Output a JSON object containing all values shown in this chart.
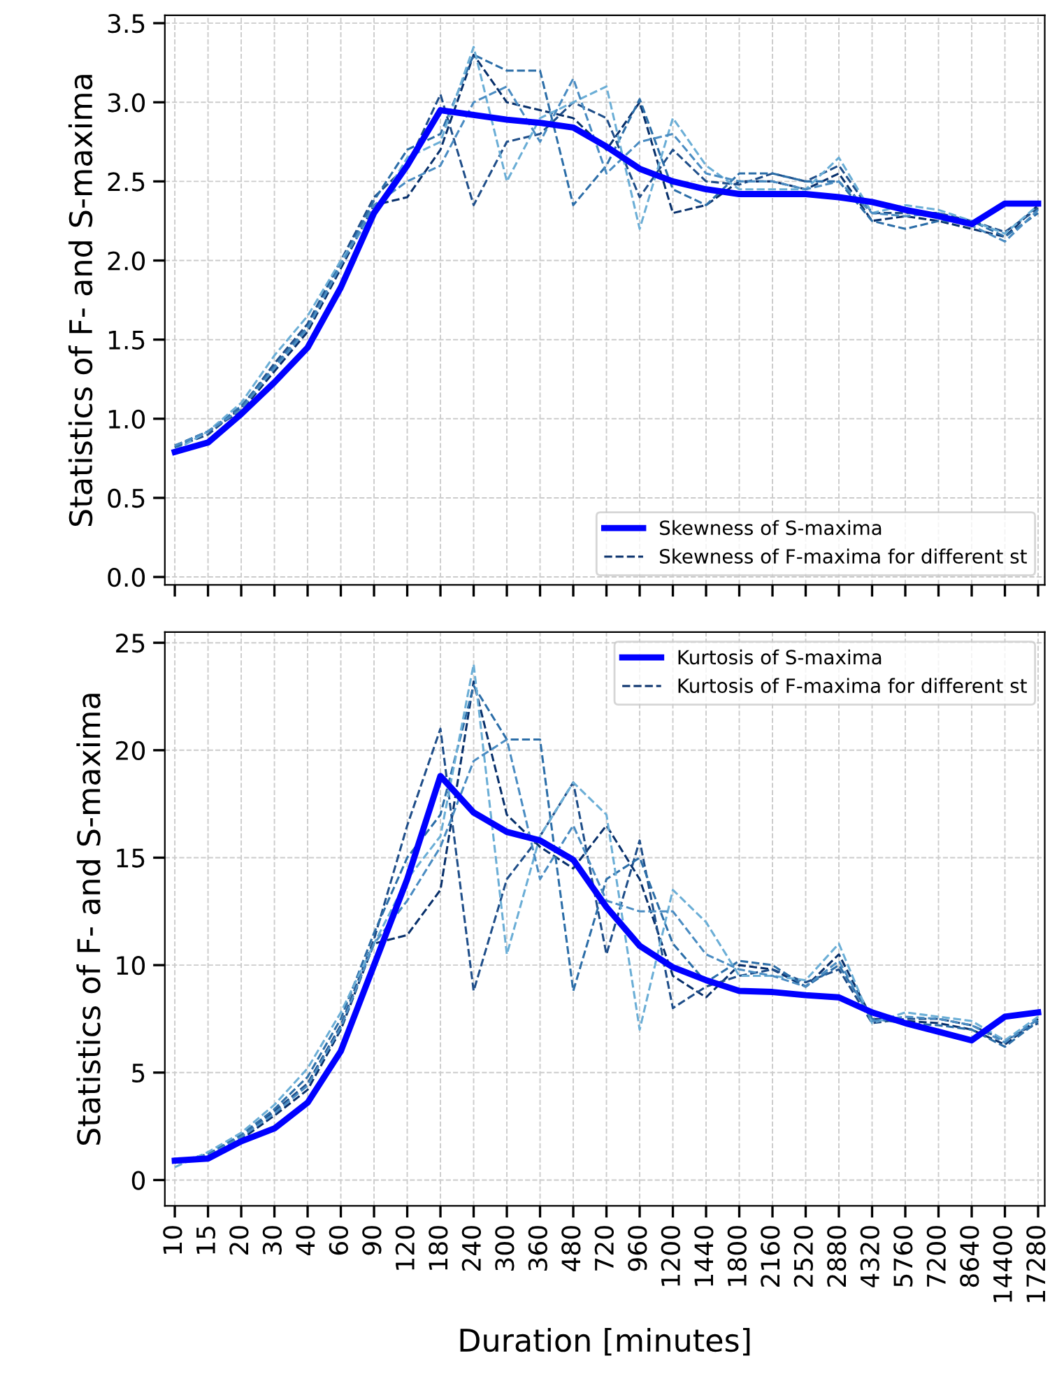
{
  "chart_data": [
    {
      "type": "line",
      "ylabel": "Statistics of F- and S-maxima",
      "categories": [
        "10",
        "15",
        "20",
        "30",
        "40",
        "60",
        "90",
        "120",
        "180",
        "240",
        "300",
        "360",
        "480",
        "720",
        "960",
        "1200",
        "1440",
        "1800",
        "2160",
        "2520",
        "2880",
        "4320",
        "5760",
        "7200",
        "8640",
        "14400",
        "17280"
      ],
      "ylim": [
        -0.05,
        3.55
      ],
      "yticks": [
        {
          "value": 0,
          "label": "0.0"
        },
        0.5,
        {
          "value": 1,
          "label": "1.0"
        },
        1.5,
        {
          "value": 2,
          "label": "2.0"
        },
        2.5,
        {
          "value": 3,
          "label": "3.0"
        },
        3.5
      ],
      "grid": true,
      "legend": "bottom right",
      "tick_labels": "y",
      "marker": "none",
      "series": [
        {
          "name": "Skewness of F-maxima for different st",
          "color": "#08306b",
          "line_style": "dashed",
          "values": [
            0.83,
            0.92,
            1.05,
            1.3,
            1.55,
            1.95,
            2.35,
            2.4,
            2.7,
            3.3,
            3.0,
            2.95,
            2.9,
            2.7,
            3.0,
            2.3,
            2.35,
            2.5,
            2.5,
            2.45,
            2.55,
            2.25,
            2.28,
            2.25,
            2.2,
            2.15,
            2.35
          ]
        },
        {
          "color": "#1f4e89",
          "line_style": "dashed",
          "values": [
            0.82,
            0.9,
            1.07,
            1.35,
            1.6,
            2.0,
            2.4,
            2.6,
            3.05,
            2.35,
            2.75,
            2.8,
            3.0,
            2.9,
            2.4,
            2.7,
            2.5,
            2.48,
            2.55,
            2.5,
            2.6,
            2.3,
            2.3,
            2.3,
            2.25,
            2.18,
            2.33
          ]
        },
        {
          "color": "#2c6ea8",
          "line_style": "dashed",
          "values": [
            0.82,
            0.92,
            1.08,
            1.33,
            1.58,
            1.98,
            2.38,
            2.7,
            2.8,
            3.3,
            3.2,
            3.2,
            2.35,
            2.6,
            3.02,
            2.45,
            2.35,
            2.55,
            2.55,
            2.5,
            2.5,
            2.25,
            2.2,
            2.25,
            2.25,
            2.15,
            2.3
          ]
        },
        {
          "color": "#6baed6",
          "line_style": "dashed",
          "values": [
            0.8,
            0.92,
            1.1,
            1.4,
            1.65,
            2.0,
            2.3,
            2.65,
            2.75,
            3.35,
            2.5,
            2.9,
            3.0,
            3.1,
            2.2,
            2.9,
            2.6,
            2.45,
            2.45,
            2.45,
            2.65,
            2.3,
            2.35,
            2.32,
            2.25,
            2.17,
            2.35
          ]
        },
        {
          "color": "#4a8cc2",
          "line_style": "dashed",
          "values": [
            0.83,
            0.92,
            1.06,
            1.32,
            1.57,
            1.97,
            2.35,
            2.5,
            2.6,
            3.0,
            3.1,
            2.75,
            3.15,
            2.55,
            2.75,
            2.8,
            2.55,
            2.5,
            2.5,
            2.45,
            2.5,
            2.3,
            2.28,
            2.3,
            2.22,
            2.12,
            2.32
          ]
        },
        {
          "name": "Skewness of S-maxima",
          "color": "#0000ff",
          "line_style": "solid",
          "values": [
            0.79,
            0.85,
            1.03,
            1.23,
            1.45,
            1.83,
            2.3,
            2.6,
            2.95,
            2.92,
            2.89,
            2.87,
            2.84,
            2.72,
            2.58,
            2.5,
            2.45,
            2.42,
            2.42,
            2.42,
            2.4,
            2.37,
            2.32,
            2.28,
            2.23,
            2.36,
            2.36
          ]
        }
      ]
    },
    {
      "type": "line",
      "xlabel": "Duration [minutes]",
      "ylabel": "Statistics of F- and S-maxima",
      "categories": [
        "10",
        "15",
        "20",
        "30",
        "40",
        "60",
        "90",
        "120",
        "180",
        "240",
        "300",
        "360",
        "480",
        "720",
        "960",
        "1200",
        "1440",
        "1800",
        "2160",
        "2520",
        "2880",
        "4320",
        "5760",
        "7200",
        "8640",
        "14400",
        "17280"
      ],
      "ylim": [
        -1.2,
        25.5
      ],
      "yticks": [
        0,
        5,
        10,
        15,
        20,
        25
      ],
      "grid": true,
      "legend": "top right",
      "marker": "none",
      "series": [
        {
          "name": "Kurtosis of F-maxima for different st",
          "color": "#08306b",
          "line_style": "dashed",
          "values": [
            0.8,
            1.1,
            1.9,
            3.0,
            4.2,
            7.0,
            11,
            11.4,
            13.5,
            23.2,
            17,
            15.5,
            14.5,
            16.5,
            14,
            9.5,
            8.5,
            10,
            9.8,
            9.0,
            10.5,
            7.5,
            7.4,
            7.3,
            7.0,
            6.3,
            7.5
          ]
        },
        {
          "color": "#1f4e89",
          "line_style": "dashed",
          "values": [
            0.85,
            1.2,
            2.0,
            3.2,
            4.5,
            7.2,
            11.2,
            16.5,
            21,
            8.8,
            14,
            16,
            18.5,
            10.5,
            15.8,
            8,
            9,
            9.5,
            9.8,
            9.2,
            9.8,
            7.3,
            7.5,
            7.5,
            7.2,
            6.5,
            7.3
          ]
        },
        {
          "color": "#2c6ea8",
          "line_style": "dashed",
          "values": [
            0.8,
            1.2,
            2.1,
            3.3,
            4.8,
            7.5,
            11.5,
            15,
            17,
            23,
            20.5,
            20.5,
            8.8,
            14,
            15,
            11,
            9.2,
            10.2,
            10,
            9.0,
            10,
            7.5,
            7.3,
            7.2,
            7.0,
            6.2,
            7.4
          ]
        },
        {
          "color": "#6baed6",
          "line_style": "dashed",
          "values": [
            0.6,
            1.3,
            2.2,
            3.5,
            5.2,
            7.8,
            11,
            14,
            16,
            24,
            10.5,
            16,
            18.5,
            17,
            7,
            13.5,
            12,
            9.5,
            9.5,
            9.3,
            11,
            7.3,
            7.8,
            7.6,
            7.4,
            6.5,
            7.6
          ]
        },
        {
          "color": "#4a8cc2",
          "line_style": "dashed",
          "values": [
            0.85,
            1.15,
            2.0,
            3.1,
            4.4,
            7.1,
            11,
            13,
            15.5,
            19.5,
            20.5,
            14,
            16.5,
            13,
            12.5,
            12.5,
            10.5,
            9.8,
            9.5,
            9.0,
            10.2,
            7.4,
            7.6,
            7.5,
            7.2,
            6.4,
            7.5
          ]
        },
        {
          "name": "Kurtosis of S-maxima",
          "color": "#0000ff",
          "line_style": "solid",
          "values": [
            0.9,
            1.0,
            1.8,
            2.4,
            3.6,
            6.0,
            10,
            14,
            18.8,
            17.1,
            16.2,
            15.8,
            14.9,
            12.7,
            10.9,
            9.9,
            9.3,
            8.8,
            8.75,
            8.6,
            8.5,
            7.8,
            7.3,
            6.9,
            6.5,
            7.6,
            7.8
          ]
        }
      ]
    }
  ]
}
